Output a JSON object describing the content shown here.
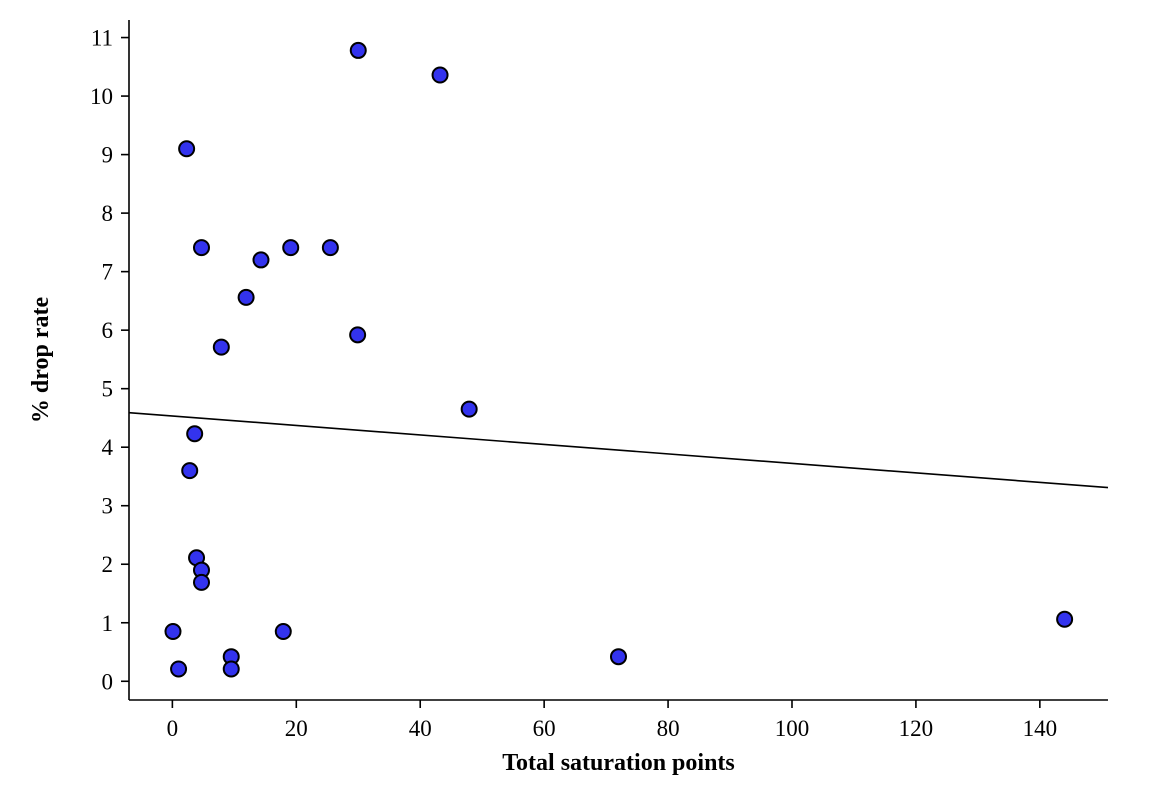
{
  "chart_data": {
    "type": "scatter",
    "xlabel": "Total saturation points",
    "ylabel": "% drop rate",
    "xlim": [
      -7,
      151
    ],
    "ylim": [
      -0.32,
      11.3
    ],
    "xticks": [
      0,
      20,
      40,
      60,
      80,
      100,
      120,
      140
    ],
    "yticks": [
      0,
      1,
      2,
      3,
      4,
      5,
      6,
      7,
      8,
      9,
      10,
      11
    ],
    "xtick_labels": [
      "0",
      "20",
      "40",
      "60",
      "80",
      "100",
      "120",
      "140"
    ],
    "ytick_labels": [
      "0",
      "1",
      "2",
      "3",
      "4",
      "5",
      "6",
      "7",
      "8",
      "9",
      "10",
      "11"
    ],
    "grid": false,
    "marker_color": "#3333ee",
    "marker_edge_color": "#000000",
    "trend_line": {
      "x": [
        -7,
        151
      ],
      "y": [
        4.59,
        3.31
      ]
    },
    "points": [
      {
        "x": 30.0,
        "y": 10.78
      },
      {
        "x": 43.2,
        "y": 10.36
      },
      {
        "x": 2.3,
        "y": 9.1
      },
      {
        "x": 4.7,
        "y": 7.41
      },
      {
        "x": 14.3,
        "y": 7.2
      },
      {
        "x": 19.1,
        "y": 7.41
      },
      {
        "x": 25.5,
        "y": 7.41
      },
      {
        "x": 11.9,
        "y": 6.56
      },
      {
        "x": 29.9,
        "y": 5.92
      },
      {
        "x": 7.9,
        "y": 5.71
      },
      {
        "x": 47.9,
        "y": 4.65
      },
      {
        "x": 3.6,
        "y": 4.23
      },
      {
        "x": 2.8,
        "y": 3.6
      },
      {
        "x": 3.9,
        "y": 2.11
      },
      {
        "x": 4.7,
        "y": 1.9
      },
      {
        "x": 4.7,
        "y": 1.69
      },
      {
        "x": 0.1,
        "y": 0.85
      },
      {
        "x": 17.9,
        "y": 0.85
      },
      {
        "x": 1.0,
        "y": 0.21
      },
      {
        "x": 9.5,
        "y": 0.42
      },
      {
        "x": 9.5,
        "y": 0.21
      },
      {
        "x": 72.0,
        "y": 0.42
      },
      {
        "x": 144.0,
        "y": 1.06
      }
    ]
  }
}
